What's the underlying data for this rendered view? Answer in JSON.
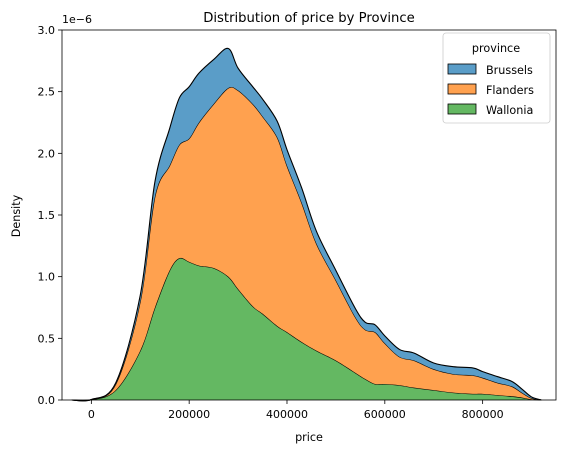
{
  "chart_data": {
    "type": "area",
    "stacked": true,
    "title": "Distribution of price by Province",
    "xlabel": "price",
    "ylabel": "Density",
    "y_scale_label": "1e−6",
    "xlim": [
      -60000,
      950000
    ],
    "ylim": [
      0,
      3e-06
    ],
    "x_ticks": [
      0,
      200000,
      400000,
      600000,
      800000
    ],
    "x_tick_labels": [
      "0",
      "200000",
      "400000",
      "600000",
      "800000"
    ],
    "y_ticks": [
      0,
      5e-07,
      1e-06,
      1.5e-06,
      2e-06,
      2.5e-06,
      3e-06
    ],
    "y_tick_labels": [
      "0.0",
      "0.5",
      "1.0",
      "1.5",
      "2.0",
      "2.5",
      "3.0"
    ],
    "grid": false,
    "legend": {
      "title": "province",
      "placement": "top-right"
    },
    "x": [
      -40000,
      0,
      50000,
      100000,
      130000,
      160000,
      180000,
      200000,
      220000,
      250000,
      280000,
      300000,
      330000,
      350000,
      380000,
      400000,
      430000,
      460000,
      500000,
      540000,
      560000,
      580000,
      600000,
      630000,
      660000,
      700000,
      740000,
      780000,
      800000,
      830000,
      860000,
      880000,
      900000,
      920000
    ],
    "series": [
      {
        "name": "Wallonia",
        "color": "#64b862",
        "values": [
          0,
          2e-09,
          8e-08,
          4e-07,
          7.5e-07,
          1.05e-06,
          1.15e-06,
          1.12e-06,
          1.09e-06,
          1.07e-06,
          1e-06,
          9e-07,
          7.6e-07,
          7e-07,
          6e-07,
          5.5e-07,
          4.7e-07,
          4e-07,
          3.2e-07,
          2.2e-07,
          1.7e-07,
          1.3e-07,
          1.3e-07,
          1.2e-07,
          1e-07,
          8e-08,
          6e-08,
          5e-08,
          5e-08,
          4e-08,
          3e-08,
          2e-08,
          5e-09,
          0
        ]
      },
      {
        "name": "Flanders",
        "color": "#ffa14f",
        "values": [
          0,
          1e-09,
          5e-08,
          4e-07,
          9e-07,
          8.5e-07,
          9.2e-07,
          1e-06,
          1.16e-06,
          1.33e-06,
          1.53e-06,
          1.61e-06,
          1.64e-06,
          1.6e-06,
          1.53e-06,
          1.35e-06,
          1.13e-06,
          8.7e-07,
          6.5e-07,
          4.5e-07,
          4e-07,
          4.2e-07,
          3.3e-07,
          2.3e-07,
          2.2e-07,
          1.7e-07,
          1.5e-07,
          1.5e-07,
          1.3e-07,
          1e-07,
          8e-08,
          4e-08,
          1e-08,
          0
        ]
      },
      {
        "name": "Brussels",
        "color": "#5a9dc8",
        "values": [
          0,
          5e-10,
          1e-08,
          5e-08,
          1.2e-07,
          3e-07,
          3.8e-07,
          4.2e-07,
          4e-07,
          3.6e-07,
          3.2e-07,
          1.8e-07,
          1.4e-07,
          1.4e-07,
          1.3e-07,
          1.3e-07,
          1.2e-07,
          1e-07,
          8e-08,
          7e-08,
          6e-08,
          6e-08,
          6e-08,
          6e-08,
          6e-08,
          5e-08,
          6e-08,
          6e-08,
          5e-08,
          5e-08,
          4e-08,
          3e-08,
          1e-08,
          0
        ]
      }
    ],
    "legend_order": [
      "Brussels",
      "Flanders",
      "Wallonia"
    ]
  }
}
